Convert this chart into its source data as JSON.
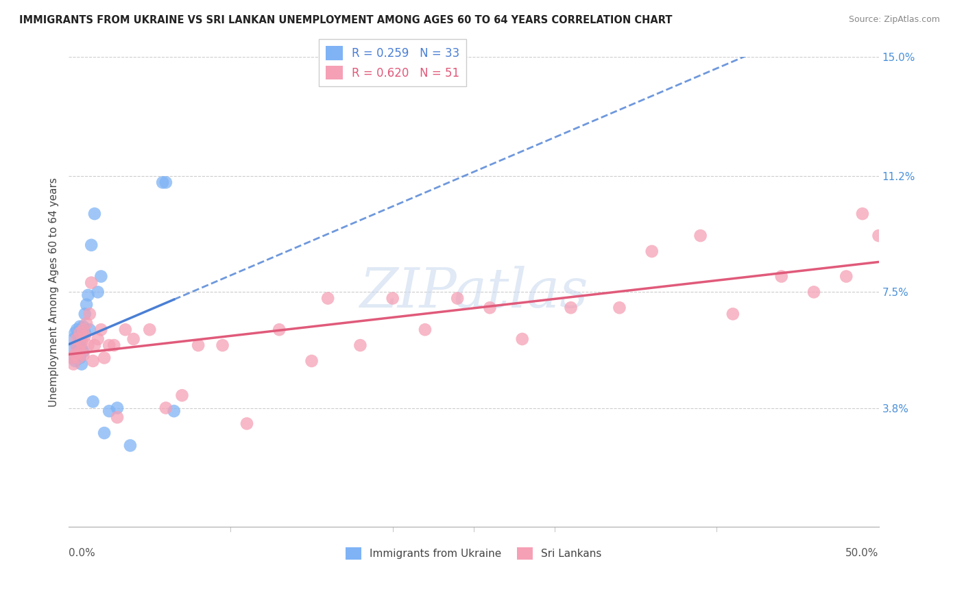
{
  "title": "IMMIGRANTS FROM UKRAINE VS SRI LANKAN UNEMPLOYMENT AMONG AGES 60 TO 64 YEARS CORRELATION CHART",
  "source": "Source: ZipAtlas.com",
  "ylabel": "Unemployment Among Ages 60 to 64 years",
  "xmin": 0.0,
  "xmax": 0.5,
  "ymin": 0.0,
  "ymax": 0.15,
  "ukraine_R": 0.259,
  "ukraine_N": 33,
  "srilanka_R": 0.62,
  "srilanka_N": 51,
  "ukraine_color": "#7fb3f5",
  "srilanka_color": "#f5a0b5",
  "ukraine_line_color": "#4a7fd4",
  "srilanka_line_color": "#e05a7a",
  "watermark_color": "#c8d8ee",
  "ukraine_x": [
    0.002,
    0.003,
    0.003,
    0.004,
    0.004,
    0.005,
    0.005,
    0.006,
    0.006,
    0.007,
    0.007,
    0.007,
    0.008,
    0.008,
    0.009,
    0.009,
    0.01,
    0.01,
    0.011,
    0.012,
    0.013,
    0.014,
    0.015,
    0.016,
    0.018,
    0.02,
    0.022,
    0.025,
    0.03,
    0.038,
    0.058,
    0.06,
    0.065
  ],
  "ukraine_y": [
    0.054,
    0.057,
    0.06,
    0.053,
    0.062,
    0.058,
    0.063,
    0.056,
    0.061,
    0.054,
    0.059,
    0.064,
    0.052,
    0.057,
    0.056,
    0.064,
    0.062,
    0.068,
    0.071,
    0.074,
    0.063,
    0.09,
    0.04,
    0.1,
    0.075,
    0.08,
    0.03,
    0.037,
    0.038,
    0.026,
    0.11,
    0.11,
    0.037
  ],
  "srilanka_x": [
    0.002,
    0.003,
    0.004,
    0.005,
    0.005,
    0.006,
    0.007,
    0.007,
    0.008,
    0.009,
    0.009,
    0.01,
    0.011,
    0.012,
    0.013,
    0.014,
    0.015,
    0.016,
    0.018,
    0.02,
    0.022,
    0.025,
    0.028,
    0.03,
    0.035,
    0.04,
    0.05,
    0.06,
    0.07,
    0.08,
    0.095,
    0.11,
    0.13,
    0.15,
    0.16,
    0.18,
    0.2,
    0.22,
    0.24,
    0.26,
    0.28,
    0.31,
    0.34,
    0.36,
    0.39,
    0.41,
    0.44,
    0.46,
    0.48,
    0.49,
    0.5
  ],
  "srilanka_y": [
    0.054,
    0.052,
    0.055,
    0.057,
    0.06,
    0.054,
    0.056,
    0.062,
    0.059,
    0.055,
    0.063,
    0.061,
    0.065,
    0.058,
    0.068,
    0.078,
    0.053,
    0.058,
    0.06,
    0.063,
    0.054,
    0.058,
    0.058,
    0.035,
    0.063,
    0.06,
    0.063,
    0.038,
    0.042,
    0.058,
    0.058,
    0.033,
    0.063,
    0.053,
    0.073,
    0.058,
    0.073,
    0.063,
    0.073,
    0.07,
    0.06,
    0.07,
    0.07,
    0.088,
    0.093,
    0.068,
    0.08,
    0.075,
    0.08,
    0.1,
    0.093
  ]
}
